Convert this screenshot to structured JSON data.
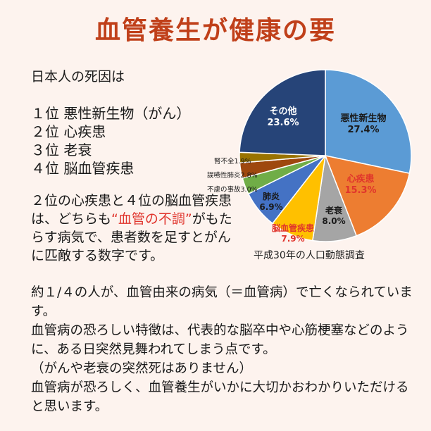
{
  "title": "血管養生が健康の要",
  "intro": "日本人の死因は",
  "ranks": [
    "１位 悪性新生物（がん）",
    "２位 心疾患",
    "３位 老衰",
    "４位 脳血管疾患"
  ],
  "para1": {
    "before": "２位の心疾患と４位の脳血管疾患は、どちらも",
    "highlight": "“血管の不調”",
    "after": "がもたらす病気で、患者数を足すとがんに匹敵する数字です。"
  },
  "body_lines": [
    "約１/４の人が、血管由来の病気（＝血管病）で亡くなられています。",
    "血管病の恐ろしい特徴は、代表的な脳卒中や心筋梗塞などのように、ある日突然見舞われてしまう点です。",
    "（がんや老衰の突然死はありません）",
    "血管病が恐ろしく、血管養生がいかに大切かおわかりいただけると思います。"
  ],
  "caption": "平成30年の人口動態調査",
  "colors": {
    "title": "#c0401a",
    "highlight": "#e0342c"
  },
  "chart_data": {
    "type": "pie",
    "slices": [
      {
        "label": "悪性新生物",
        "value": 27.4,
        "value_label": "27.4%",
        "color": "#5b9bd5",
        "text_color": "#1a1a1a"
      },
      {
        "label": "心疾患",
        "value": 15.3,
        "value_label": "15.3%",
        "color": "#ed7d31",
        "text_color": "#ffffff",
        "label_color": "#e0342c"
      },
      {
        "label": "老衰",
        "value": 8.0,
        "value_label": "8.0%",
        "color": "#a5a5a5",
        "text_color": "#1a1a1a"
      },
      {
        "label": "脳血管疾患",
        "value": 7.9,
        "value_label": "7.9%",
        "color": "#ffc000",
        "text_color": "#1a1a1a",
        "label_color": "#e0342c"
      },
      {
        "label": "肺炎",
        "value": 6.9,
        "value_label": "6.9%",
        "color": "#4472c4",
        "text_color": "#1a1a1a"
      },
      {
        "label": "不慮の事故",
        "value": 3.0,
        "value_label": "3.0%",
        "color": "#70ad47",
        "text_color": "#1a1a1a"
      },
      {
        "label": "誤嚥性肺炎",
        "value": 2.8,
        "value_label": "2.8%",
        "color": "#9e480e",
        "text_color": "#1a1a1a"
      },
      {
        "label": "腎不全",
        "value": 1.9,
        "value_label": "1.9%",
        "color": "#997300",
        "text_color": "#1a1a1a"
      },
      {
        "label": "その他",
        "value": 23.6,
        "value_label": "23.6%",
        "color": "#264478",
        "text_color": "#ffffff"
      }
    ]
  }
}
